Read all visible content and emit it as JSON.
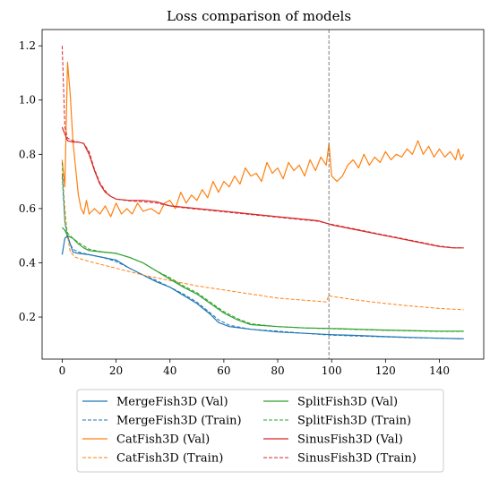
{
  "chart_data": {
    "type": "line",
    "title": "Loss comparison of models",
    "xlabel": "",
    "ylabel": "",
    "xlim": [
      -7.45,
      156.45
    ],
    "ylim": [
      0.045,
      1.26
    ],
    "xticks": [
      0,
      20,
      40,
      60,
      80,
      100,
      120,
      140
    ],
    "yticks": [
      0.2,
      0.4,
      0.6,
      0.8,
      1.0,
      1.2
    ],
    "xtick_labels": [
      "0",
      "20",
      "40",
      "60",
      "80",
      "100",
      "120",
      "140"
    ],
    "ytick_labels": [
      "0.2",
      "0.4",
      "0.6",
      "0.8",
      "1.0",
      "1.2"
    ],
    "vline_x": 99,
    "grid": false,
    "legend_position": "below",
    "series": [
      {
        "name": "MergeFish3D (Val)",
        "color": "#1f77b4",
        "dash": false,
        "points": [
          [
            0,
            0.43
          ],
          [
            1,
            0.49
          ],
          [
            2,
            0.5
          ],
          [
            3,
            0.47
          ],
          [
            4,
            0.44
          ],
          [
            6,
            0.435
          ],
          [
            10,
            0.43
          ],
          [
            15,
            0.42
          ],
          [
            20,
            0.41
          ],
          [
            25,
            0.38
          ],
          [
            30,
            0.355
          ],
          [
            35,
            0.33
          ],
          [
            40,
            0.31
          ],
          [
            45,
            0.28
          ],
          [
            50,
            0.25
          ],
          [
            55,
            0.21
          ],
          [
            58,
            0.18
          ],
          [
            62,
            0.165
          ],
          [
            70,
            0.155
          ],
          [
            80,
            0.145
          ],
          [
            90,
            0.14
          ],
          [
            100,
            0.135
          ],
          [
            110,
            0.132
          ],
          [
            120,
            0.128
          ],
          [
            130,
            0.125
          ],
          [
            140,
            0.122
          ],
          [
            149,
            0.12
          ]
        ]
      },
      {
        "name": "MergeFish3D (Train)",
        "color": "#1f77b4",
        "dash": true,
        "points": [
          [
            0,
            0.72
          ],
          [
            1,
            0.55
          ],
          [
            2,
            0.49
          ],
          [
            4,
            0.45
          ],
          [
            6,
            0.44
          ],
          [
            10,
            0.43
          ],
          [
            15,
            0.42
          ],
          [
            20,
            0.405
          ],
          [
            25,
            0.38
          ],
          [
            30,
            0.355
          ],
          [
            35,
            0.335
          ],
          [
            40,
            0.31
          ],
          [
            45,
            0.285
          ],
          [
            50,
            0.255
          ],
          [
            55,
            0.215
          ],
          [
            58,
            0.19
          ],
          [
            62,
            0.17
          ],
          [
            70,
            0.155
          ],
          [
            80,
            0.148
          ],
          [
            90,
            0.14
          ],
          [
            100,
            0.133
          ],
          [
            110,
            0.13
          ],
          [
            120,
            0.127
          ],
          [
            130,
            0.124
          ],
          [
            140,
            0.122
          ],
          [
            149,
            0.12
          ]
        ]
      },
      {
        "name": "CatFish3D (Val)",
        "color": "#ff7f0e",
        "dash": false,
        "points": [
          [
            0,
            0.78
          ],
          [
            1,
            0.68
          ],
          [
            2,
            1.14
          ],
          [
            3,
            1.02
          ],
          [
            4,
            0.85
          ],
          [
            5,
            0.75
          ],
          [
            6,
            0.65
          ],
          [
            7,
            0.6
          ],
          [
            8,
            0.58
          ],
          [
            9,
            0.63
          ],
          [
            10,
            0.58
          ],
          [
            12,
            0.6
          ],
          [
            14,
            0.58
          ],
          [
            16,
            0.61
          ],
          [
            18,
            0.57
          ],
          [
            20,
            0.62
          ],
          [
            22,
            0.58
          ],
          [
            24,
            0.6
          ],
          [
            26,
            0.58
          ],
          [
            28,
            0.62
          ],
          [
            30,
            0.59
          ],
          [
            33,
            0.6
          ],
          [
            36,
            0.58
          ],
          [
            38,
            0.62
          ],
          [
            40,
            0.63
          ],
          [
            42,
            0.6
          ],
          [
            44,
            0.66
          ],
          [
            46,
            0.62
          ],
          [
            48,
            0.65
          ],
          [
            50,
            0.63
          ],
          [
            52,
            0.67
          ],
          [
            54,
            0.64
          ],
          [
            56,
            0.7
          ],
          [
            58,
            0.66
          ],
          [
            60,
            0.7
          ],
          [
            62,
            0.68
          ],
          [
            64,
            0.72
          ],
          [
            66,
            0.69
          ],
          [
            68,
            0.75
          ],
          [
            70,
            0.72
          ],
          [
            72,
            0.73
          ],
          [
            74,
            0.7
          ],
          [
            76,
            0.77
          ],
          [
            78,
            0.73
          ],
          [
            80,
            0.75
          ],
          [
            82,
            0.71
          ],
          [
            84,
            0.77
          ],
          [
            86,
            0.74
          ],
          [
            88,
            0.76
          ],
          [
            90,
            0.72
          ],
          [
            92,
            0.78
          ],
          [
            94,
            0.74
          ],
          [
            96,
            0.79
          ],
          [
            98,
            0.76
          ],
          [
            99,
            0.84
          ],
          [
            100,
            0.72
          ],
          [
            102,
            0.7
          ],
          [
            104,
            0.72
          ],
          [
            106,
            0.76
          ],
          [
            108,
            0.78
          ],
          [
            110,
            0.75
          ],
          [
            112,
            0.8
          ],
          [
            114,
            0.76
          ],
          [
            116,
            0.79
          ],
          [
            118,
            0.77
          ],
          [
            120,
            0.81
          ],
          [
            122,
            0.78
          ],
          [
            124,
            0.8
          ],
          [
            126,
            0.79
          ],
          [
            128,
            0.82
          ],
          [
            130,
            0.8
          ],
          [
            132,
            0.85
          ],
          [
            134,
            0.8
          ],
          [
            136,
            0.83
          ],
          [
            138,
            0.79
          ],
          [
            140,
            0.82
          ],
          [
            142,
            0.79
          ],
          [
            144,
            0.81
          ],
          [
            146,
            0.78
          ],
          [
            147,
            0.82
          ],
          [
            148,
            0.78
          ],
          [
            149,
            0.8
          ]
        ]
      },
      {
        "name": "CatFish3D (Train)",
        "color": "#ff7f0e",
        "dash": true,
        "points": [
          [
            0,
            0.73
          ],
          [
            1,
            0.6
          ],
          [
            2,
            0.5
          ],
          [
            3,
            0.44
          ],
          [
            5,
            0.42
          ],
          [
            10,
            0.405
          ],
          [
            20,
            0.38
          ],
          [
            30,
            0.355
          ],
          [
            40,
            0.335
          ],
          [
            50,
            0.315
          ],
          [
            60,
            0.3
          ],
          [
            70,
            0.285
          ],
          [
            80,
            0.27
          ],
          [
            90,
            0.262
          ],
          [
            98,
            0.256
          ],
          [
            99,
            0.28
          ],
          [
            100,
            0.276
          ],
          [
            110,
            0.262
          ],
          [
            120,
            0.25
          ],
          [
            130,
            0.24
          ],
          [
            140,
            0.232
          ],
          [
            149,
            0.227
          ]
        ]
      },
      {
        "name": "SplitFish3D (Val)",
        "color": "#2ca02c",
        "dash": false,
        "points": [
          [
            0,
            0.53
          ],
          [
            1,
            0.52
          ],
          [
            2,
            0.5
          ],
          [
            4,
            0.49
          ],
          [
            6,
            0.47
          ],
          [
            8,
            0.455
          ],
          [
            10,
            0.445
          ],
          [
            15,
            0.44
          ],
          [
            20,
            0.435
          ],
          [
            25,
            0.42
          ],
          [
            30,
            0.4
          ],
          [
            35,
            0.37
          ],
          [
            40,
            0.34
          ],
          [
            45,
            0.31
          ],
          [
            50,
            0.285
          ],
          [
            55,
            0.25
          ],
          [
            60,
            0.215
          ],
          [
            65,
            0.19
          ],
          [
            70,
            0.172
          ],
          [
            80,
            0.165
          ],
          [
            90,
            0.16
          ],
          [
            100,
            0.158
          ],
          [
            110,
            0.155
          ],
          [
            120,
            0.152
          ],
          [
            130,
            0.15
          ],
          [
            140,
            0.148
          ],
          [
            149,
            0.148
          ]
        ]
      },
      {
        "name": "SplitFish3D (Train)",
        "color": "#2ca02c",
        "dash": true,
        "points": [
          [
            0,
            0.77
          ],
          [
            1,
            0.55
          ],
          [
            2,
            0.51
          ],
          [
            4,
            0.49
          ],
          [
            6,
            0.475
          ],
          [
            10,
            0.45
          ],
          [
            15,
            0.44
          ],
          [
            20,
            0.435
          ],
          [
            25,
            0.42
          ],
          [
            30,
            0.4
          ],
          [
            35,
            0.37
          ],
          [
            40,
            0.345
          ],
          [
            45,
            0.315
          ],
          [
            50,
            0.29
          ],
          [
            55,
            0.255
          ],
          [
            60,
            0.22
          ],
          [
            65,
            0.195
          ],
          [
            70,
            0.175
          ],
          [
            80,
            0.165
          ],
          [
            90,
            0.16
          ],
          [
            100,
            0.157
          ],
          [
            110,
            0.154
          ],
          [
            120,
            0.151
          ],
          [
            130,
            0.149
          ],
          [
            140,
            0.147
          ],
          [
            149,
            0.147
          ]
        ]
      },
      {
        "name": "SinusFish3D (Val)",
        "color": "#d62728",
        "dash": false,
        "points": [
          [
            0,
            0.9
          ],
          [
            2,
            0.85
          ],
          [
            4,
            0.845
          ],
          [
            6,
            0.845
          ],
          [
            8,
            0.84
          ],
          [
            10,
            0.8
          ],
          [
            12,
            0.74
          ],
          [
            14,
            0.69
          ],
          [
            16,
            0.66
          ],
          [
            18,
            0.645
          ],
          [
            20,
            0.635
          ],
          [
            25,
            0.63
          ],
          [
            30,
            0.63
          ],
          [
            35,
            0.625
          ],
          [
            40,
            0.61
          ],
          [
            45,
            0.605
          ],
          [
            50,
            0.6
          ],
          [
            55,
            0.595
          ],
          [
            60,
            0.59
          ],
          [
            65,
            0.585
          ],
          [
            70,
            0.58
          ],
          [
            75,
            0.575
          ],
          [
            80,
            0.57
          ],
          [
            85,
            0.565
          ],
          [
            90,
            0.56
          ],
          [
            95,
            0.555
          ],
          [
            100,
            0.54
          ],
          [
            105,
            0.53
          ],
          [
            110,
            0.52
          ],
          [
            115,
            0.51
          ],
          [
            120,
            0.5
          ],
          [
            125,
            0.49
          ],
          [
            130,
            0.48
          ],
          [
            135,
            0.47
          ],
          [
            140,
            0.46
          ],
          [
            145,
            0.455
          ],
          [
            149,
            0.455
          ]
        ]
      },
      {
        "name": "SinusFish3D (Train)",
        "color": "#d62728",
        "dash": true,
        "points": [
          [
            0,
            1.2
          ],
          [
            1,
            0.9
          ],
          [
            2,
            0.86
          ],
          [
            4,
            0.85
          ],
          [
            6,
            0.845
          ],
          [
            8,
            0.84
          ],
          [
            10,
            0.81
          ],
          [
            12,
            0.745
          ],
          [
            14,
            0.695
          ],
          [
            16,
            0.665
          ],
          [
            18,
            0.645
          ],
          [
            20,
            0.635
          ],
          [
            25,
            0.628
          ],
          [
            30,
            0.625
          ],
          [
            35,
            0.62
          ],
          [
            40,
            0.61
          ],
          [
            45,
            0.603
          ],
          [
            50,
            0.598
          ],
          [
            55,
            0.593
          ],
          [
            60,
            0.588
          ],
          [
            65,
            0.583
          ],
          [
            70,
            0.578
          ],
          [
            75,
            0.573
          ],
          [
            80,
            0.568
          ],
          [
            85,
            0.563
          ],
          [
            90,
            0.558
          ],
          [
            95,
            0.553
          ],
          [
            100,
            0.542
          ],
          [
            105,
            0.532
          ],
          [
            110,
            0.522
          ],
          [
            115,
            0.512
          ],
          [
            120,
            0.502
          ],
          [
            125,
            0.492
          ],
          [
            130,
            0.482
          ],
          [
            135,
            0.472
          ],
          [
            140,
            0.462
          ],
          [
            145,
            0.456
          ],
          [
            149,
            0.455
          ]
        ]
      }
    ]
  }
}
